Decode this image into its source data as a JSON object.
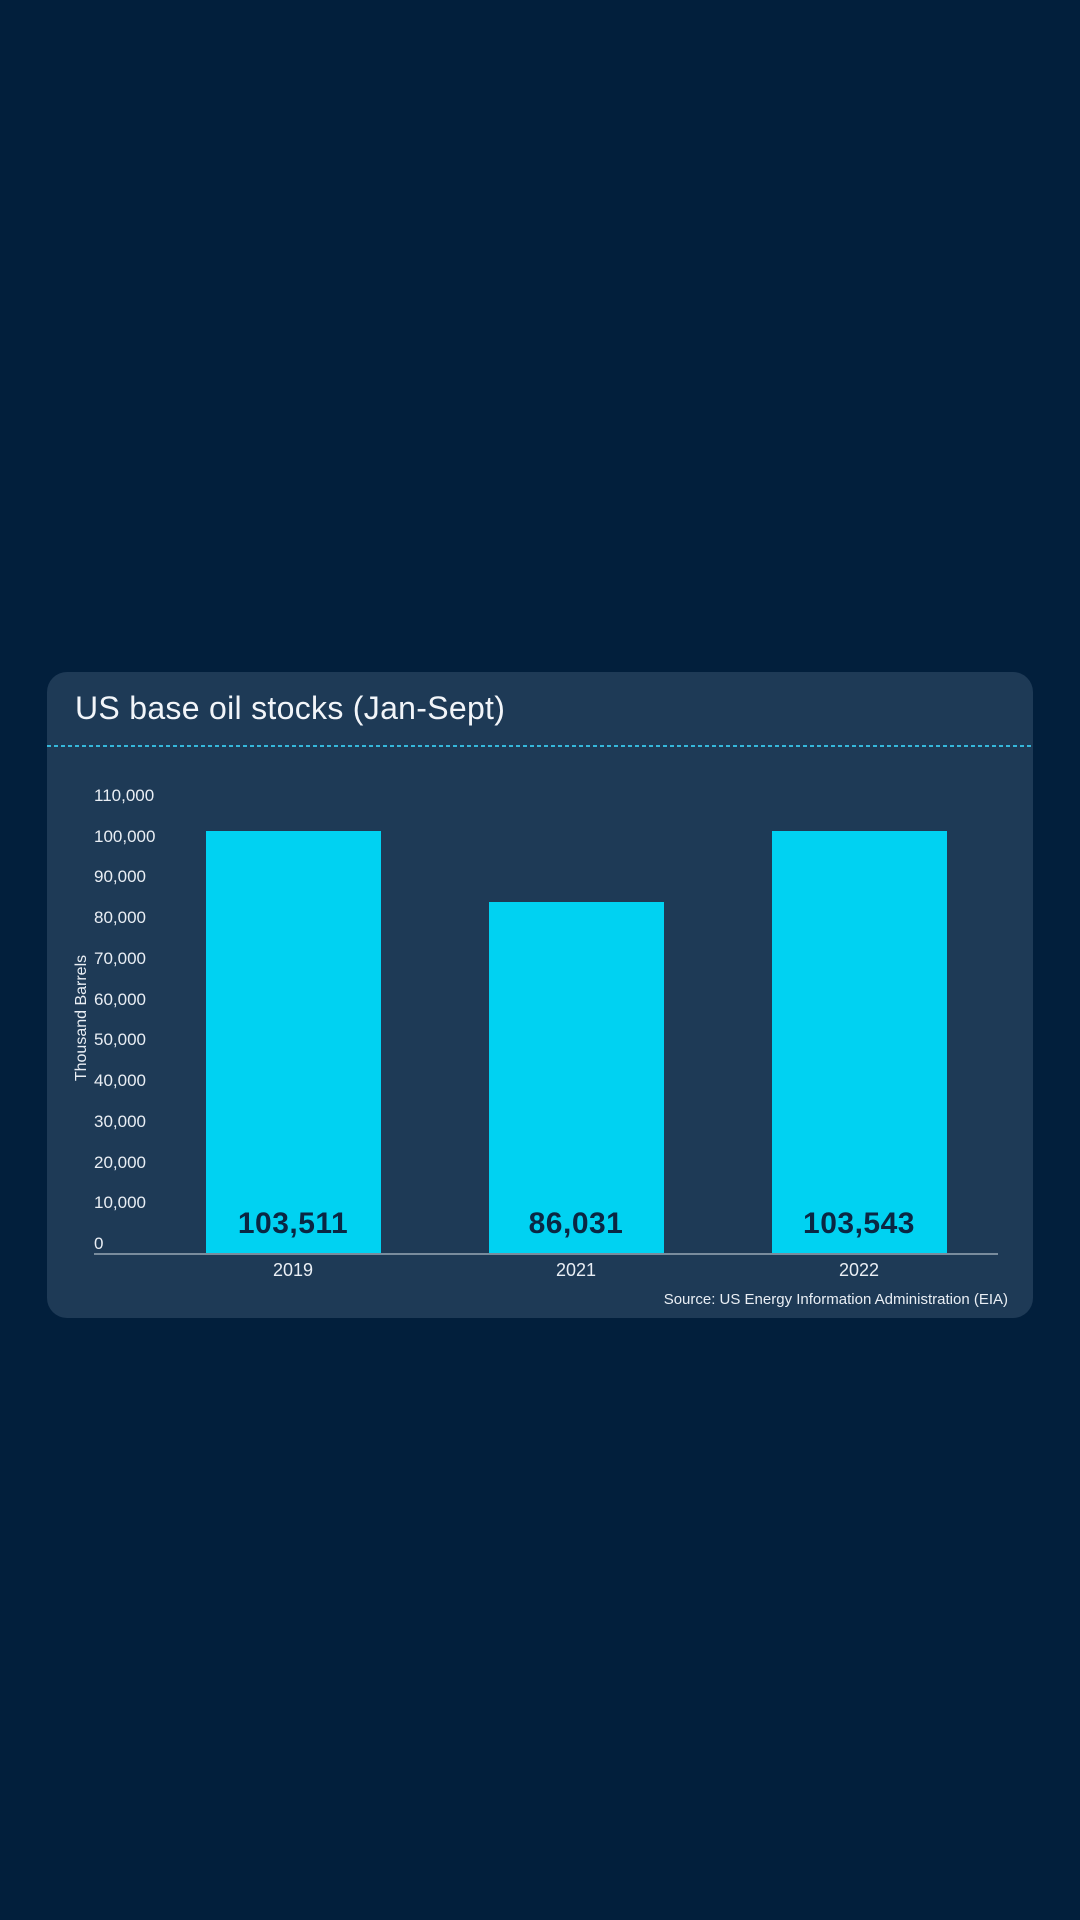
{
  "card": {
    "title": "US base oil stocks (Jan-Sept)",
    "source": "Source: US Energy Information Administration (EIA)"
  },
  "chart_data": {
    "type": "bar",
    "title": "US base oil stocks (Jan-Sept)",
    "categories": [
      "2019",
      "2021",
      "2022"
    ],
    "values": [
      103511,
      86031,
      103543
    ],
    "value_labels": [
      "103,511",
      "86,031",
      "103,543"
    ],
    "xlabel": "",
    "ylabel": "Thousand Barrels",
    "ylim": [
      0,
      110000
    ],
    "ytick_step": 10000,
    "ytick_labels": [
      "0",
      "10,000",
      "20,000",
      "30,000",
      "40,000",
      "50,000",
      "60,000",
      "70,000",
      "80,000",
      "90,000",
      "100,000",
      "110,000"
    ],
    "grid": false,
    "legend": false
  },
  "colors": {
    "page_background": "#021f3c",
    "card_background": "#1e3a56",
    "bar_fill": "#00d2f2",
    "divider_accent": "#35b7da",
    "text_light": "#e9eef4",
    "bar_value_text": "#0a2743",
    "axis_line": "#c5cfd9"
  }
}
